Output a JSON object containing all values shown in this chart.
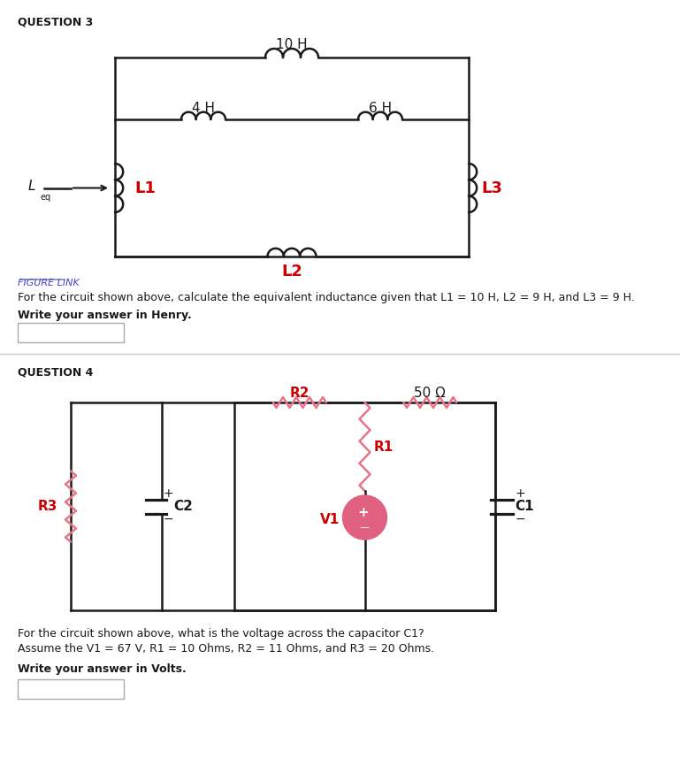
{
  "bg_color": "#ffffff",
  "q3_title": "QUESTION 3",
  "q4_title": "QUESTION 4",
  "figure_link": "FIGURE LINK",
  "q3_text": "For the circuit shown above, calculate the equivalent inductance given that L1 = 10 H, L2 = 9 H, and L3 = 9 H.",
  "q3_subtext": "Write your answer in Henry.",
  "q4_text": "For the circuit shown above, what is the voltage across the capacitor C1?",
  "q4_text2": "Assume the V1 = 67 V, R1 = 10 Ohms, R2 = 11 Ohms, and R3 = 20 Ohms.",
  "q4_subtext": "Write your answer in Volts.",
  "label_10H": "10 H",
  "label_4H": "4 H",
  "label_6H": "6 H",
  "label_L1": "L1",
  "label_L2": "L2",
  "label_L3": "L3",
  "label_Leq": "L",
  "label_eq": "eq",
  "label_R1": "R1",
  "label_R2": "R2",
  "label_R3": "R3",
  "label_50ohm": "50 Ω",
  "label_C1": "C1",
  "label_C2": "C2",
  "label_V1": "V1",
  "red_color": "#cc0000",
  "pink_color": "#e8748a",
  "dark_color": "#1a1a1a",
  "gray_color": "#888888",
  "line_width": 1.8
}
